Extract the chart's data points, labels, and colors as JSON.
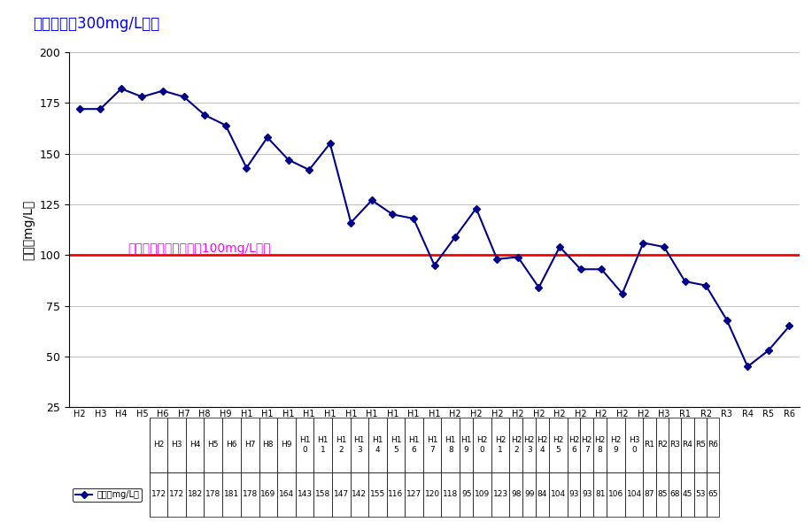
{
  "categories_display": [
    "H2",
    "H3",
    "H4",
    "H5",
    "H6",
    "H7",
    "H8",
    "H9",
    "H1\n0",
    "H1\n1",
    "H1\n2",
    "H1\n3",
    "H1\n4",
    "H1\n5",
    "H1\n6",
    "H1\n7",
    "H1\n8",
    "H1\n9",
    "H2\n0",
    "H2\n1",
    "H2\n2",
    "H2\n3",
    "H2\n4",
    "H2\n5",
    "H2\n6",
    "H2\n7",
    "H2\n8",
    "H2\n9",
    "H3\n0",
    "R1",
    "R2",
    "R3",
    "R4",
    "R5",
    "R6"
  ],
  "values": [
    172,
    172,
    182,
    178,
    181,
    178,
    169,
    164,
    143,
    158,
    147,
    142,
    155,
    116,
    127,
    120,
    118,
    95,
    109,
    123,
    98,
    99,
    84,
    104,
    93,
    93,
    81,
    106,
    104,
    87,
    85,
    68,
    45,
    53,
    65
  ],
  "line_color": "#00008B",
  "marker": "D",
  "marker_size": 4,
  "ref_line_y": 100,
  "ref_line_color": "red",
  "title": "水質基準　300mg/L以下",
  "title_color": "#0000FF",
  "title_fontsize": 12,
  "annotation": "中長期計画の目標値　100mg/L以下",
  "annotation_color": "#FF00FF",
  "annotation_fontsize": 10,
  "ylabel": "硬度（mg/L）",
  "ylabel_fontsize": 10,
  "ylim": [
    25,
    200
  ],
  "yticks": [
    25,
    50,
    75,
    100,
    125,
    150,
    175,
    200
  ],
  "legend_label": "硬度（mg/L）",
  "background_color": "#FFFFFF",
  "grid_color": "#AAAAAA",
  "table_row_label": "硬度（mg/L）"
}
